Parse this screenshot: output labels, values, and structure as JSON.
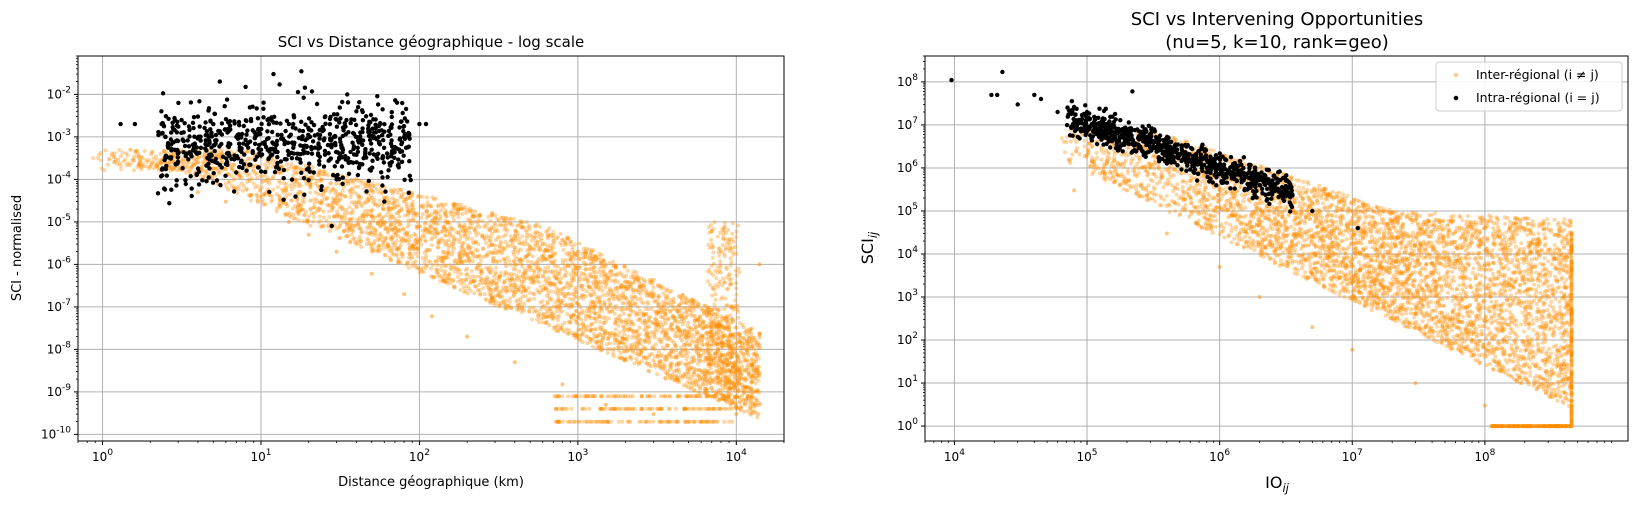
{
  "chart_data": [
    {
      "type": "scatter",
      "title": "SCI vs Distance géographique - log scale",
      "xlabel": "Distance géographique (km)",
      "ylabel": "SCI - normalised",
      "x_scale": "log",
      "y_scale": "log",
      "xlim": [
        0.7,
        20000
      ],
      "ylim": [
        7e-11,
        0.08
      ],
      "x_ticks": [
        "10^0",
        "10^1",
        "10^2",
        "10^3",
        "10^4"
      ],
      "y_ticks": [
        "10^-10",
        "10^-9",
        "10^-8",
        "10^-7",
        "10^-6",
        "10^-5",
        "10^-4",
        "10^-3",
        "10^-2"
      ],
      "grid": true,
      "series": [
        {
          "color": "#ff8c00",
          "opacity": 0.35,
          "description": "dense cloud, x 1 to 14000 km, y from about 2e-10 to 3e-4, decreasing with distance",
          "points": [
            [
              1.1,
              0.0003
            ],
            [
              1.5,
              0.0005
            ],
            [
              2,
              0.0002
            ],
            [
              4,
              5e-05
            ],
            [
              6,
              3e-05
            ],
            [
              10,
              4e-05
            ],
            [
              15,
              1e-05
            ],
            [
              20,
              5e-06
            ],
            [
              30,
              2e-06
            ],
            [
              50,
              6e-07
            ],
            [
              80,
              2e-07
            ],
            [
              120,
              6e-08
            ],
            [
              200,
              2e-08
            ],
            [
              400,
              5e-09
            ],
            [
              800,
              1.5e-09
            ],
            [
              1500,
              5e-10
            ],
            [
              3000,
              3e-10
            ],
            [
              6000,
              2e-10
            ],
            [
              10000,
              3e-10
            ],
            [
              20,
              0.0002
            ],
            [
              40,
              0.0001
            ],
            [
              80,
              3e-05
            ],
            [
              150,
              1e-05
            ],
            [
              300,
              6e-06
            ],
            [
              600,
              3e-06
            ],
            [
              1000,
              2e-06
            ],
            [
              1500,
              1e-06
            ],
            [
              2500,
              3e-07
            ],
            [
              4000,
              6e-08
            ],
            [
              7000,
              6e-06
            ],
            [
              8000,
              2e-06
            ],
            [
              14000,
              1e-06
            ]
          ]
        },
        {
          "color": "#000000",
          "opacity": 1,
          "description": "intra-regional points, x 1.3 to 120 km, y about 1e-5 to 4e-2",
          "points": [
            [
              1.3,
              0.002
            ],
            [
              1.6,
              0.002
            ],
            [
              2.5,
              0.001
            ],
            [
              3,
              0.0008
            ],
            [
              4,
              0.003
            ],
            [
              5,
              0.002
            ],
            [
              5.5,
              0.02
            ],
            [
              7,
              0.001
            ],
            [
              8,
              0.015
            ],
            [
              10,
              0.0005
            ],
            [
              12,
              0.03
            ],
            [
              15,
              0.002
            ],
            [
              18,
              0.035
            ],
            [
              20,
              0.001
            ],
            [
              25,
              0.0002
            ],
            [
              30,
              0.0001
            ],
            [
              35,
              0.01
            ],
            [
              40,
              0.004
            ],
            [
              50,
              0.0005
            ],
            [
              60,
              3e-05
            ],
            [
              80,
              0.001
            ],
            [
              100,
              0.002
            ],
            [
              110,
              0.002
            ],
            [
              28,
              8e-06
            ]
          ]
        }
      ]
    },
    {
      "type": "scatter",
      "title": "SCI vs Intervening Opportunities",
      "subtitle": "(nu=5, k=10, rank=geo)",
      "xlabel": "IO",
      "xlabel_sub": "ij",
      "ylabel": "SCI",
      "ylabel_sub": "ij",
      "x_scale": "log",
      "y_scale": "log",
      "xlim": [
        6000,
        1200000000.0
      ],
      "ylim": [
        0.45,
        400000000.0
      ],
      "x_ticks": [
        "10^4",
        "10^5",
        "10^6",
        "10^7",
        "10^8"
      ],
      "y_ticks": [
        "10^0",
        "10^1",
        "10^2",
        "10^3",
        "10^4",
        "10^5",
        "10^6",
        "10^7",
        "10^8"
      ],
      "grid": true,
      "legend": {
        "position": "top-right",
        "items": [
          {
            "label": "Inter-régional (i ≠ j)",
            "color": "#ff8c00"
          },
          {
            "label": "Intra-régional (i = j)",
            "color": "#000000"
          }
        ]
      },
      "series": [
        {
          "name": "Inter-régional (i ≠ j)",
          "color": "#ff8c00",
          "opacity": 0.35,
          "points": [
            [
              80000.0,
              300000.0
            ],
            [
              100000.0,
              2000000.0
            ],
            [
              200000.0,
              300000.0
            ],
            [
              400000.0,
              30000.0
            ],
            [
              1000000.0,
              5000.0
            ],
            [
              2000000.0,
              1000.0
            ],
            [
              5000000.0,
              200
            ],
            [
              10000000.0,
              60
            ],
            [
              30000000.0,
              10
            ],
            [
              100000000.0,
              3
            ],
            [
              450000000.0,
              1
            ],
            [
              300000.0,
              1000000.0
            ],
            [
              600000.0,
              500000.0
            ],
            [
              1000000.0,
              300000.0
            ],
            [
              2000000.0,
              200000.0
            ],
            [
              5000000.0,
              150000.0
            ],
            [
              10000000.0,
              100000.0
            ],
            [
              30000000.0,
              60000.0
            ],
            [
              100000000.0,
              40000.0
            ],
            [
              450000000.0,
              30000.0
            ]
          ]
        },
        {
          "name": "Intra-régional (i = j)",
          "color": "#000000",
          "opacity": 1,
          "points": [
            [
              9500.0,
              110000000.0
            ],
            [
              19000.0,
              50000000.0
            ],
            [
              21000.0,
              50000000.0
            ],
            [
              23000.0,
              170000000.0
            ],
            [
              30000.0,
              30000000.0
            ],
            [
              40000.0,
              50000000.0
            ],
            [
              45000.0,
              40000000.0
            ],
            [
              60000.0,
              20000000.0
            ],
            [
              80000.0,
              10000000.0
            ],
            [
              100000.0,
              20000000.0
            ],
            [
              150000.0,
              10000000.0
            ],
            [
              200000.0,
              5000000.0
            ],
            [
              300000.0,
              3000000.0
            ],
            [
              500000.0,
              2000000.0
            ],
            [
              800000.0,
              1000000.0
            ],
            [
              1000000.0,
              1000000.0
            ],
            [
              1500000.0,
              700000.0
            ],
            [
              2000000.0,
              400000.0
            ],
            [
              3000000.0,
              200000.0
            ],
            [
              5000000.0,
              100000.0
            ],
            [
              11000000.0,
              40000.0
            ],
            [
              220000.0,
              60000000.0
            ]
          ]
        }
      ]
    }
  ]
}
